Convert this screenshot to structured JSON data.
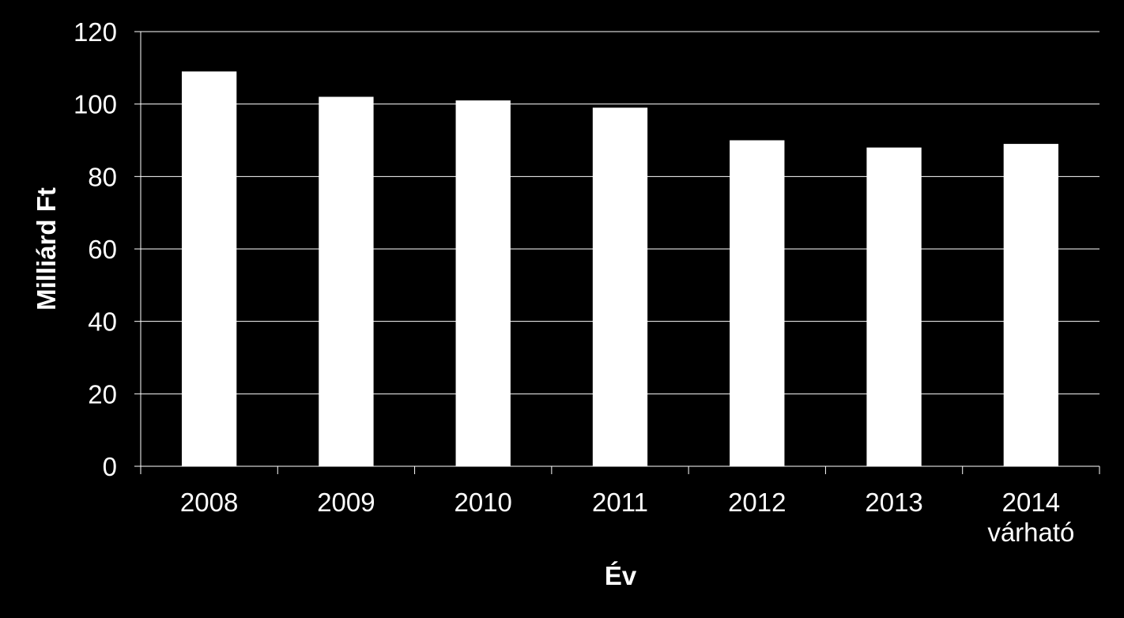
{
  "chart_data": {
    "type": "bar",
    "categories": [
      [
        "2008"
      ],
      [
        "2009"
      ],
      [
        "2010"
      ],
      [
        "2011"
      ],
      [
        "2012"
      ],
      [
        "2013"
      ],
      [
        "2014",
        "várható"
      ]
    ],
    "values": [
      109,
      102,
      101,
      99,
      90,
      88,
      89
    ],
    "xlabel": "Év",
    "ylabel": "Milliárd Ft",
    "ylim": [
      0,
      120
    ],
    "yticks": [
      0,
      20,
      40,
      60,
      80,
      100,
      120
    ],
    "grid": true,
    "colors": {
      "background": "#000000",
      "bar": "#ffffff",
      "grid": "#ffffff",
      "text": "#ffffff"
    }
  }
}
